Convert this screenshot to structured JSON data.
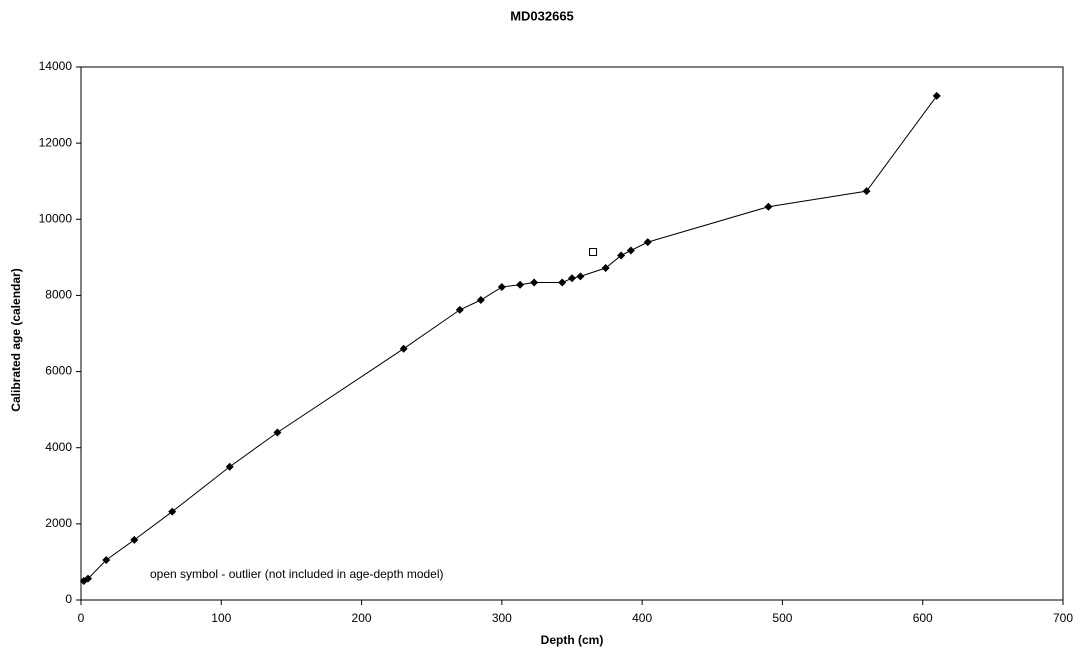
{
  "chart_data": {
    "type": "line",
    "title": "MD032665",
    "x_label": "Depth (cm)",
    "y_label": "Calibrated age (calendar)",
    "annotation": "open symbol - outlier (not included in age-depth model)",
    "xlim": [
      0,
      700
    ],
    "xticks": [
      0,
      100,
      200,
      300,
      400,
      500,
      600,
      700
    ],
    "ylim": [
      0,
      14000
    ],
    "yticks": [
      0,
      2000,
      4000,
      6000,
      8000,
      10000,
      12000,
      14000
    ],
    "grid": false,
    "series": [
      {
        "color": "#000000",
        "marker": "diamond",
        "line": true,
        "x": [
          2,
          5,
          18,
          38,
          65,
          106,
          140,
          230,
          270,
          285,
          300,
          313,
          323,
          343,
          350,
          356,
          374,
          385,
          392,
          404,
          490,
          560,
          610
        ],
        "values": [
          500,
          560,
          1050,
          1580,
          2320,
          3500,
          4400,
          6600,
          7620,
          7880,
          8220,
          8280,
          8340,
          8340,
          8450,
          8500,
          8720,
          9050,
          9180,
          9400,
          10330,
          10740,
          13240
        ]
      },
      {
        "color": "#000000",
        "marker": "square-open",
        "line": false,
        "x": [
          365
        ],
        "values": [
          9140
        ]
      }
    ]
  }
}
